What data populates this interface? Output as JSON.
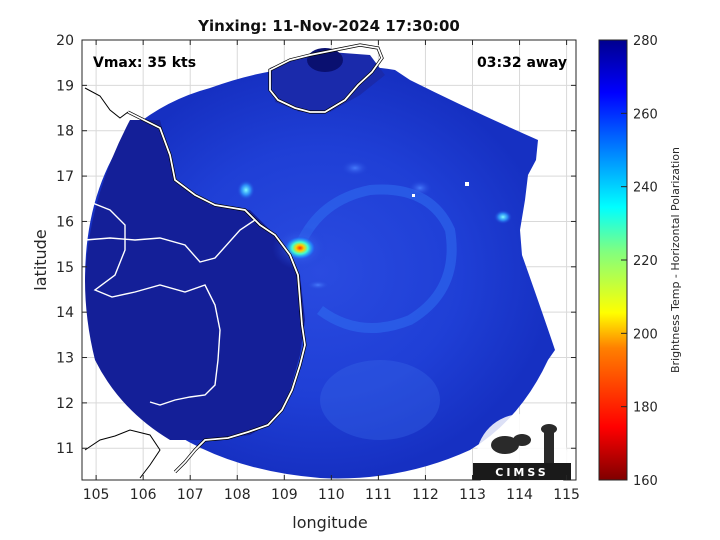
{
  "map": {
    "title": "Yinxing: 11-Nov-2024 17:30:00",
    "vmax_label": "Vmax: 35 kts",
    "time_label": "03:32 away",
    "xlabel": "longitude",
    "ylabel": "latitude",
    "x_ticks": [
      "105",
      "106",
      "107",
      "108",
      "109",
      "110",
      "111",
      "112",
      "113",
      "114",
      "115"
    ],
    "y_ticks": [
      "11",
      "12",
      "13",
      "14",
      "15",
      "16",
      "17",
      "18",
      "19",
      "20"
    ],
    "xlim": [
      104.7,
      115.2
    ],
    "ylim": [
      10.3,
      20.0
    ],
    "storm_center": {
      "lon": 109.4,
      "lat": 15.2
    },
    "swath_center": {
      "lon": 109.8,
      "lat": 15.1
    }
  },
  "colorbar": {
    "label": "Brightness Temp - Horizontal Polarization",
    "ticks": [
      "160",
      "180",
      "200",
      "220",
      "240",
      "260",
      "280"
    ],
    "range": [
      160,
      280
    ],
    "colors": [
      "#7f0000",
      "#ff0000",
      "#ff8000",
      "#ffff00",
      "#80ff80",
      "#00ffff",
      "#0080ff",
      "#0000ff",
      "#00008f"
    ]
  },
  "logo": {
    "text": "CIMSS"
  }
}
